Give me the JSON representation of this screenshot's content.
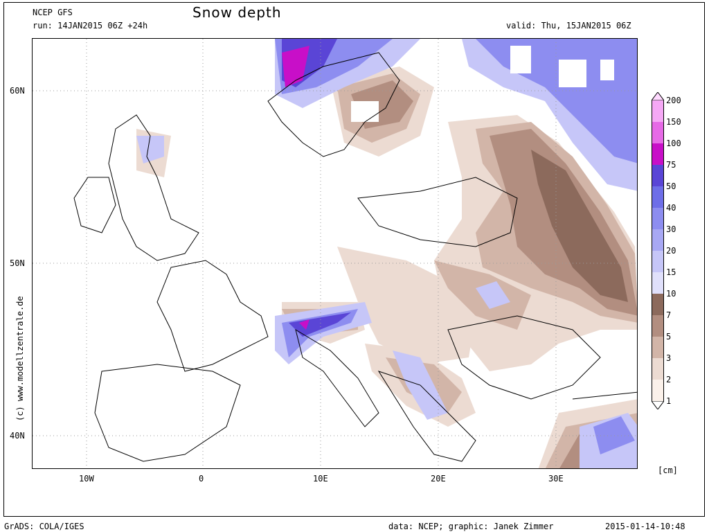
{
  "header": {
    "model": "NCEP GFS",
    "run": "run: 14JAN2015 06Z +24h",
    "title": "Snow depth",
    "valid": "valid: Thu, 15JAN2015 06Z"
  },
  "axes": {
    "lon_labels": [
      "10W",
      "0",
      "10E",
      "20E",
      "30E"
    ],
    "lat_labels": [
      "60N",
      "50N",
      "40N"
    ]
  },
  "credit_vertical": "(c) www.modellzentrale.de",
  "colorbar": {
    "unit": "[cm]",
    "levels": [
      "200",
      "150",
      "100",
      "75",
      "50",
      "40",
      "30",
      "20",
      "15",
      "10",
      "7",
      "5",
      "3",
      "2",
      "1"
    ],
    "colors": [
      "#ffd9ff",
      "#f5a8f5",
      "#e66ae6",
      "#c80fc8",
      "#5a45d6",
      "#6e6ee8",
      "#8d8df0",
      "#a8a8f4",
      "#c6c6f8",
      "#e0e0fb",
      "#8c6a5c",
      "#b28e80",
      "#d2b5a8",
      "#ecdbd2",
      "#fbf1ea",
      "#ffffff"
    ]
  },
  "footer": {
    "left": "GrADS: COLA/IGES",
    "center": "data: NCEP; graphic: Janek Zimmer",
    "right": "2015-01-14-10:48"
  }
}
